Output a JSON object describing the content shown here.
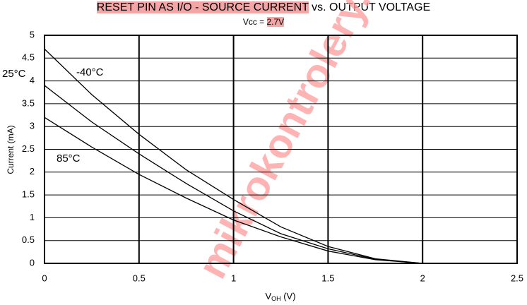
{
  "chart_data": {
    "type": "line",
    "title": [
      "RESET PIN AS I/O - SOURCE CURRENT",
      "vs. OUTPUT VOLTAGE"
    ],
    "subtitle": [
      "Vcc = ",
      "2.7V"
    ],
    "x_label": [
      "V",
      "OH",
      " (V)"
    ],
    "y_label": "Current (mA)",
    "watermark": "mikrokontrolery.blogspot.com",
    "x": [
      0,
      0.25,
      0.5,
      0.75,
      1,
      1.25,
      1.5,
      1.75,
      2
    ],
    "series": [
      {
        "name": "-40°C",
        "color": "#000000",
        "values": [
          4.7,
          3.7,
          2.83,
          2.05,
          1.4,
          0.8,
          0.37,
          0.1,
          0
        ]
      },
      {
        "name": "25°C",
        "color": "#000000",
        "values": [
          3.9,
          3.1,
          2.4,
          1.75,
          1.15,
          0.65,
          0.32,
          0.09,
          0
        ]
      },
      {
        "name": "85°C",
        "color": "#000000",
        "values": [
          3.2,
          2.55,
          1.95,
          1.43,
          0.95,
          0.58,
          0.27,
          0.08,
          0
        ]
      }
    ],
    "xlim": [
      0,
      2.5
    ],
    "xticks": [
      0,
      0.5,
      1,
      1.5,
      2,
      2.5
    ],
    "ylim": [
      0,
      5
    ],
    "yticks": [
      0,
      0.5,
      1,
      1.5,
      2,
      2.5,
      3,
      3.5,
      4,
      4.5,
      5
    ],
    "grid": true
  }
}
